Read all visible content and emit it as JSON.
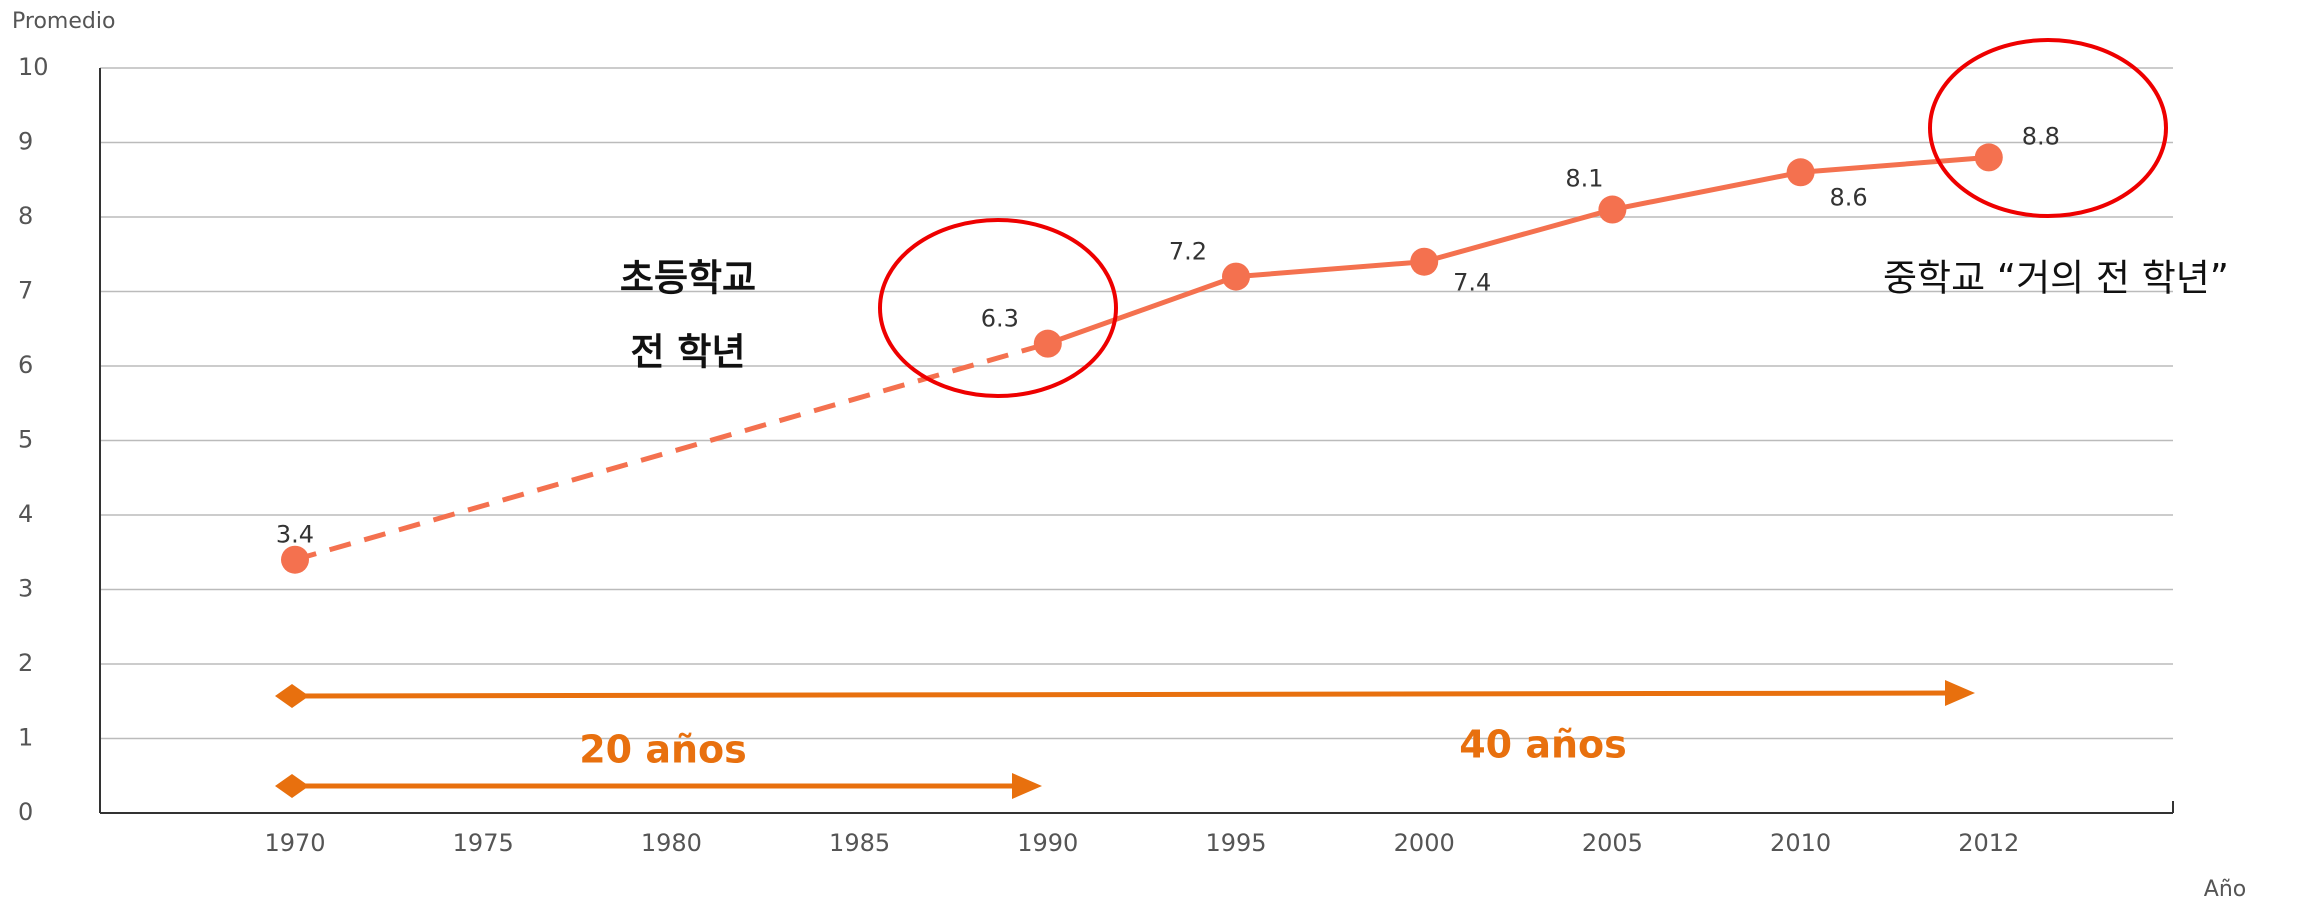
{
  "chart_data": {
    "type": "line",
    "y_label": "Promedio",
    "x_label": "Año",
    "categories": [
      "1970",
      "1975",
      "1980",
      "1985",
      "1990",
      "1995",
      "2000",
      "2005",
      "2010",
      "2012"
    ],
    "values": [
      3.4,
      null,
      null,
      null,
      6.3,
      7.2,
      7.4,
      8.1,
      8.6,
      8.8
    ],
    "color": "#f4714f",
    "ylim": [
      0,
      10
    ],
    "yticks": [
      0,
      1,
      2,
      3,
      4,
      5,
      6,
      7,
      8,
      9,
      10
    ],
    "grid": true,
    "annotations": {
      "primary": [
        "초등학교",
        "전 학년"
      ],
      "middle": "중학교 “거의 전 학년”",
      "span_20": "20 años",
      "span_40": "40 años"
    }
  }
}
